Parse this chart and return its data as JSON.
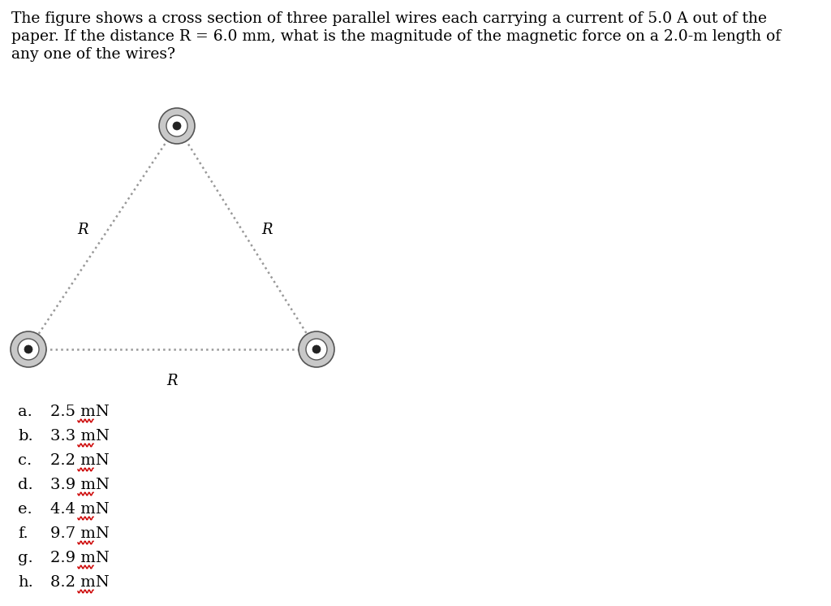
{
  "title_text_line1": "The figure shows a cross section of three parallel wires each carrying a current of 5.0 A out of the",
  "title_text_line2": "paper. If the distance R = 6.0 mm, what is the magnitude of the magnetic force on a 2.0-m length of",
  "title_text_line3": "any one of the wires?",
  "R_label_left": "R",
  "R_label_right": "R",
  "R_label_bottom": "R",
  "choices_letters": [
    "a.",
    "b.",
    "c.",
    "d.",
    "e.",
    "f.",
    "g.",
    "h."
  ],
  "choices_values": [
    "2.5 mN",
    "3.3 mN",
    "2.2 mN",
    "3.9 mN",
    "4.4 mN",
    "9.7 mN",
    "2.9 mN",
    "8.2 mN"
  ],
  "background_color": "#ffffff",
  "line_color": "#999999",
  "text_color": "#000000",
  "wavy_color": "#cc0000",
  "title_fontsize": 13.5,
  "choice_fontsize": 14,
  "R_fontsize": 13,
  "wire_outer_color": "#c8c8c8",
  "wire_middle_color": "#ffffff",
  "wire_dot_color": "#222222",
  "wire_edge_color": "#555555"
}
